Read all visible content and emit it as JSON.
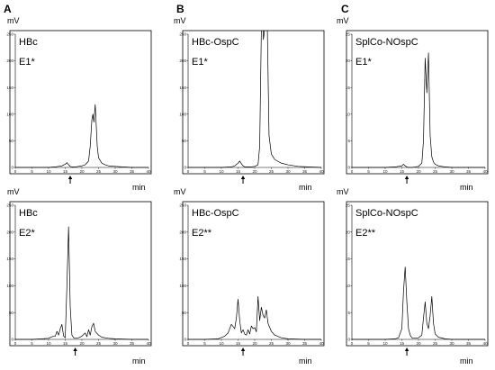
{
  "figure": {
    "unit_y": "mV",
    "unit_x": "min",
    "panel_letters": [
      "A",
      "B",
      "C"
    ]
  },
  "chart_data": [
    {
      "type": "line",
      "title": "",
      "labels": [
        "HBc",
        "E1*"
      ],
      "xlim": [
        0,
        40
      ],
      "ylim": [
        0,
        250
      ],
      "xticks": [
        "0",
        "5",
        "10",
        "15",
        "20",
        "25",
        "30",
        "35",
        "40"
      ],
      "yticks": [
        "0",
        "50",
        "100",
        "150",
        "200",
        "250"
      ],
      "arrow_x": 16.5,
      "series": [
        {
          "x": [
            0,
            5,
            10,
            12,
            13,
            14,
            15,
            15.5,
            16,
            16.5,
            17,
            18,
            19,
            20,
            21,
            22,
            22.5,
            23,
            23.3,
            23.6,
            24,
            24.3,
            24.6,
            25,
            26,
            27,
            28,
            30,
            32,
            35,
            38,
            40
          ],
          "y": [
            0,
            0,
            0,
            1,
            2,
            3,
            6,
            9,
            5,
            2,
            1,
            1,
            2,
            3,
            5,
            12,
            40,
            90,
            100,
            85,
            118,
            80,
            40,
            18,
            8,
            5,
            3,
            2,
            1,
            0,
            0,
            0
          ]
        }
      ]
    },
    {
      "type": "line",
      "title": "",
      "labels": [
        "HBc-OspC",
        "E1*"
      ],
      "xlim": [
        0,
        40
      ],
      "ylim": [
        0,
        250
      ],
      "xticks": [
        "0",
        "5",
        "10",
        "15",
        "20",
        "25",
        "30",
        "35",
        "40"
      ],
      "yticks": [
        "0",
        "50",
        "100",
        "150",
        "200",
        "250"
      ],
      "arrow_x": 16.5,
      "series": [
        {
          "x": [
            0,
            5,
            10,
            13,
            14,
            15,
            15.5,
            16,
            16.5,
            17,
            18,
            19,
            20,
            21,
            21.5,
            22,
            22.3,
            22.6,
            23,
            23.4,
            23.8,
            24.3,
            25,
            26,
            28,
            30,
            33,
            36,
            40
          ],
          "y": [
            0,
            0,
            0,
            1,
            3,
            8,
            12,
            7,
            3,
            1,
            1,
            1,
            2,
            5,
            40,
            260,
            300,
            240,
            260,
            300,
            260,
            60,
            25,
            15,
            8,
            5,
            2,
            1,
            0
          ]
        }
      ]
    },
    {
      "type": "line",
      "title": "",
      "labels": [
        "SplCo-NOspC",
        "E1*"
      ],
      "xlim": [
        0,
        40
      ],
      "ylim": [
        0,
        25
      ],
      "xticks": [
        "0",
        "5",
        "10",
        "15",
        "20",
        "25",
        "30",
        "35",
        "40"
      ],
      "yticks": [
        "0",
        "5",
        "10",
        "15",
        "20",
        "25"
      ],
      "arrow_x": 16.5,
      "series": [
        {
          "x": [
            0,
            5,
            10,
            13,
            14,
            15,
            15.5,
            16,
            16.5,
            17,
            18,
            19,
            20,
            21,
            21.5,
            22,
            22.5,
            23,
            23.5,
            24,
            24.5,
            25,
            26,
            28,
            30,
            35,
            40
          ],
          "y": [
            0,
            0,
            0,
            0.1,
            0.2,
            0.3,
            0.6,
            0.3,
            0.1,
            0,
            0,
            0.1,
            0.2,
            0.8,
            5,
            20.5,
            14,
            21.5,
            6,
            2,
            1,
            0.6,
            0.3,
            0.1,
            0,
            0,
            0
          ]
        }
      ]
    },
    {
      "type": "line",
      "title": "",
      "labels": [
        "HBc",
        "E2*"
      ],
      "xlim": [
        0,
        40
      ],
      "ylim": [
        0,
        250
      ],
      "xticks": [
        "0",
        "5",
        "10",
        "15",
        "20",
        "25",
        "30",
        "35",
        "40"
      ],
      "yticks": [
        "0",
        "50",
        "100",
        "150",
        "200",
        "250"
      ],
      "arrow_x": 18,
      "series": [
        {
          "x": [
            0,
            5,
            8,
            10,
            11,
            12,
            12.5,
            13,
            13.5,
            14,
            14.5,
            15,
            15.5,
            16,
            16.5,
            17,
            17.5,
            18,
            19,
            20,
            21,
            21.5,
            22,
            22.5,
            23,
            23.5,
            24,
            25,
            26,
            28,
            30,
            35,
            40
          ],
          "y": [
            0,
            0,
            1,
            2,
            5,
            6,
            15,
            8,
            20,
            28,
            6,
            3,
            100,
            210,
            60,
            8,
            3,
            2,
            3,
            6,
            12,
            5,
            18,
            8,
            24,
            30,
            15,
            8,
            4,
            2,
            1,
            0,
            0
          ]
        }
      ]
    },
    {
      "type": "line",
      "title": "",
      "labels": [
        "HBc-OspC",
        "E2**"
      ],
      "xlim": [
        0,
        40
      ],
      "ylim": [
        0,
        250
      ],
      "xticks": [
        "0",
        "5",
        "10",
        "15",
        "20",
        "25",
        "30",
        "35",
        "40"
      ],
      "yticks": [
        "0",
        "50",
        "100",
        "150",
        "200",
        "250"
      ],
      "arrow_x": 16.5,
      "series": [
        {
          "x": [
            0,
            5,
            9,
            11,
            12,
            13,
            14,
            14.5,
            15,
            15.5,
            16,
            16.5,
            17,
            17.5,
            18,
            18.5,
            19,
            19.5,
            20,
            20.5,
            21,
            21.5,
            22,
            22.5,
            23,
            23.5,
            24,
            25,
            26,
            28,
            30,
            35,
            40
          ],
          "y": [
            0,
            0,
            1,
            6,
            12,
            28,
            20,
            40,
            75,
            35,
            12,
            18,
            10,
            8,
            18,
            10,
            25,
            20,
            22,
            14,
            80,
            35,
            60,
            45,
            40,
            55,
            30,
            15,
            8,
            3,
            1,
            0,
            0
          ]
        }
      ]
    },
    {
      "type": "line",
      "title": "",
      "labels": [
        "SplCo-NOspC",
        "E2**"
      ],
      "xlim": [
        0,
        40
      ],
      "ylim": [
        0,
        25
      ],
      "xticks": [
        "0",
        "5",
        "10",
        "15",
        "20",
        "25",
        "30",
        "35",
        "40"
      ],
      "yticks": [
        "0",
        "5",
        "10",
        "15",
        "20",
        "25"
      ],
      "arrow_x": 16.5,
      "series": [
        {
          "x": [
            0,
            5,
            10,
            13,
            14,
            15,
            15.5,
            16,
            16.5,
            17,
            17.5,
            18,
            19,
            20,
            21,
            21.5,
            22,
            22.5,
            23,
            23.5,
            24,
            24.5,
            25,
            26,
            28,
            30,
            35,
            40
          ],
          "y": [
            0,
            0,
            0,
            0.1,
            0.3,
            2,
            9,
            13.5,
            7,
            2,
            0.8,
            0.3,
            0.2,
            0.3,
            0.8,
            4,
            7,
            3,
            2,
            4.5,
            8,
            3,
            1,
            0.4,
            0.1,
            0,
            0,
            0
          ]
        }
      ]
    }
  ]
}
